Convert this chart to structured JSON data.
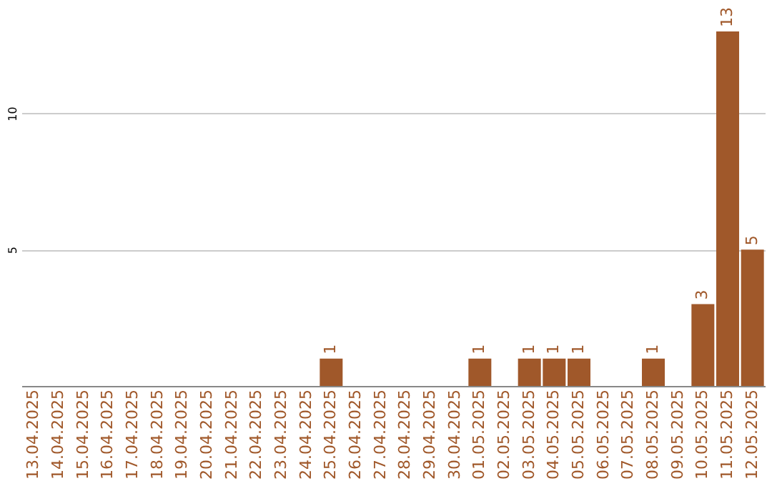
{
  "chart_data": {
    "type": "bar",
    "categories": [
      "13.04.2025",
      "14.04.2025",
      "15.04.2025",
      "16.04.2025",
      "17.04.2025",
      "18.04.2025",
      "19.04.2025",
      "20.04.2025",
      "21.04.2025",
      "22.04.2025",
      "23.04.2025",
      "24.04.2025",
      "25.04.2025",
      "26.04.2025",
      "27.04.2025",
      "28.04.2025",
      "29.04.2025",
      "30.04.2025",
      "01.05.2025",
      "02.05.2025",
      "03.05.2025",
      "04.05.2025",
      "05.05.2025",
      "06.05.2025",
      "07.05.2025",
      "08.05.2025",
      "09.05.2025",
      "10.05.2025",
      "11.05.2025",
      "12.05.2025"
    ],
    "values": [
      0,
      0,
      0,
      0,
      0,
      0,
      0,
      0,
      0,
      0,
      0,
      0,
      1,
      0,
      0,
      0,
      0,
      0,
      1,
      0,
      1,
      1,
      1,
      0,
      0,
      1,
      0,
      3,
      13,
      5
    ],
    "value_labels": [
      null,
      null,
      null,
      null,
      null,
      null,
      null,
      null,
      null,
      null,
      null,
      null,
      "1",
      null,
      null,
      null,
      null,
      null,
      "1",
      null,
      "1",
      "1",
      "1",
      null,
      null,
      "1",
      null,
      "3",
      "13",
      "5"
    ],
    "color": "#a0582a",
    "ylim": [
      0,
      13
    ],
    "yticks": [
      5,
      10
    ],
    "grid": "y"
  }
}
